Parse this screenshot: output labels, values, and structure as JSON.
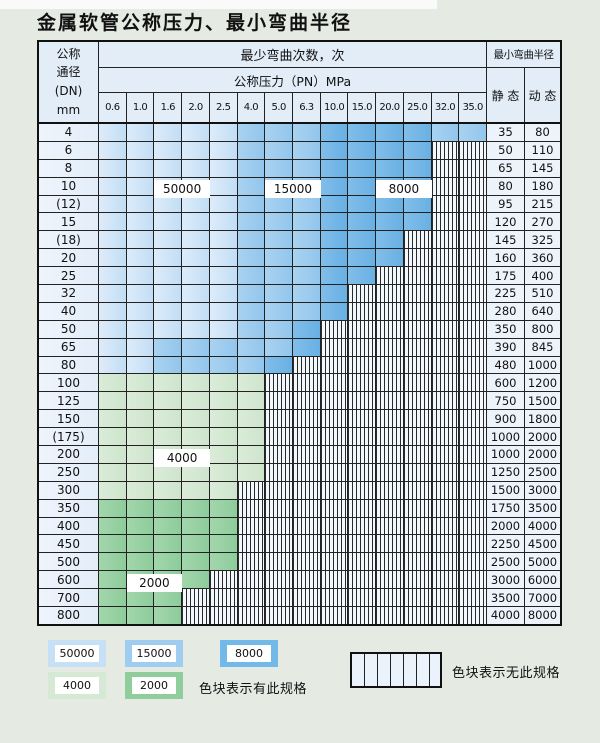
{
  "title": "金属软管公称压力、最小弯曲半径",
  "table": {
    "corner": {
      "l1": "公称",
      "l2": "通径",
      "l3": "(DN)",
      "l4": "mm"
    },
    "bend_header": "最少弯曲次数，次",
    "pressure_header": "公称压力（PN）MPa",
    "radius_header": "最小弯曲半径",
    "static_label": "静 态",
    "dynamic_label": "动 态",
    "pressures": [
      "0.6",
      "1.0",
      "1.6",
      "2.0",
      "2.5",
      "4.0",
      "5.0",
      "6.3",
      "10.0",
      "15.0",
      "20.0",
      "25.0",
      "32.0",
      "35.0"
    ],
    "legend_key": {
      "L": "50000",
      "M": "15000",
      "D": "8000",
      "G": "4000",
      "E": "2000",
      "X": "no-spec"
    },
    "rows": [
      {
        "dn": "4",
        "pattern": "LLLLLMMMDDDDMM",
        "static": "35",
        "dynamic": "80"
      },
      {
        "dn": "6",
        "pattern": "LLLLLMMMDDDDXX",
        "static": "50",
        "dynamic": "110"
      },
      {
        "dn": "8",
        "pattern": "LLLLLMMMDDDDXX",
        "static": "65",
        "dynamic": "145"
      },
      {
        "dn": "10",
        "pattern": "LLLLLMMMDDDDXX",
        "static": "80",
        "dynamic": "180"
      },
      {
        "dn": "(12)",
        "pattern": "LLLLLMMMDDDDXX",
        "static": "95",
        "dynamic": "215"
      },
      {
        "dn": "15",
        "pattern": "LLLLLMMMDDDDXX",
        "static": "120",
        "dynamic": "270"
      },
      {
        "dn": "(18)",
        "pattern": "LLLLLMMMDDDXXX",
        "static": "145",
        "dynamic": "325"
      },
      {
        "dn": "20",
        "pattern": "LLLLLMMMDDDXXX",
        "static": "160",
        "dynamic": "360"
      },
      {
        "dn": "25",
        "pattern": "LLLLLMMMDDXXXX",
        "static": "175",
        "dynamic": "400"
      },
      {
        "dn": "32",
        "pattern": "LLLLLMMMDXXXXX",
        "static": "225",
        "dynamic": "510"
      },
      {
        "dn": "40",
        "pattern": "LLLLLMMMDXXXXX",
        "static": "280",
        "dynamic": "640"
      },
      {
        "dn": "50",
        "pattern": "LLLLLMMDXXXXXX",
        "static": "350",
        "dynamic": "800"
      },
      {
        "dn": "65",
        "pattern": "LLMMMMMDXXXXXX",
        "static": "390",
        "dynamic": "845"
      },
      {
        "dn": "80",
        "pattern": "LLMMMMDXXXXXXX",
        "static": "480",
        "dynamic": "1000"
      },
      {
        "dn": "100",
        "pattern": "GGGGGGXXXXXXXX",
        "static": "600",
        "dynamic": "1200"
      },
      {
        "dn": "125",
        "pattern": "GGGGGGXXXXXXXX",
        "static": "750",
        "dynamic": "1500"
      },
      {
        "dn": "150",
        "pattern": "GGGGGGXXXXXXXX",
        "static": "900",
        "dynamic": "1800"
      },
      {
        "dn": "(175)",
        "pattern": "GGGGGGXXXXXXXX",
        "static": "1000",
        "dynamic": "2000"
      },
      {
        "dn": "200",
        "pattern": "GGGGGGXXXXXXXX",
        "static": "1000",
        "dynamic": "2000"
      },
      {
        "dn": "250",
        "pattern": "GGGGGGXXXXXXXX",
        "static": "1250",
        "dynamic": "2500"
      },
      {
        "dn": "300",
        "pattern": "GGGGGXXXXXXXXX",
        "static": "1500",
        "dynamic": "3000"
      },
      {
        "dn": "350",
        "pattern": "EEEEEXXXXXXXXX",
        "static": "1750",
        "dynamic": "3500"
      },
      {
        "dn": "400",
        "pattern": "EEEEEXXXXXXXXX",
        "static": "2000",
        "dynamic": "4000"
      },
      {
        "dn": "450",
        "pattern": "EEEEEXXXXXXXXX",
        "static": "2250",
        "dynamic": "4500"
      },
      {
        "dn": "500",
        "pattern": "EEEEEXXXXXXXXX",
        "static": "2500",
        "dynamic": "5000"
      },
      {
        "dn": "600",
        "pattern": "EEEEXXXXXXXXXX",
        "static": "3000",
        "dynamic": "6000"
      },
      {
        "dn": "700",
        "pattern": "EEEXXXXXXXXXXX",
        "static": "3500",
        "dynamic": "7000"
      },
      {
        "dn": "800",
        "pattern": "EEEXXXXXXXXXXX",
        "static": "4000",
        "dynamic": "8000"
      }
    ],
    "overlays": [
      {
        "text": "50000",
        "row_dn": "10",
        "cols": [
          2,
          3
        ]
      },
      {
        "text": "15000",
        "row_dn": "10",
        "cols": [
          6,
          7
        ]
      },
      {
        "text": "8000",
        "row_dn": "10",
        "cols": [
          10,
          11
        ]
      },
      {
        "text": "4000",
        "row_dn": "200",
        "cols": [
          2,
          3
        ]
      },
      {
        "text": "2000",
        "row_dn": "600",
        "cols": [
          1,
          2
        ]
      }
    ]
  },
  "legend": {
    "c50000": "50000",
    "c15000": "15000",
    "c8000": "8000",
    "c4000": "4000",
    "c2000": "2000",
    "has_spec_text": "色块表示有此规格",
    "no_spec_text": "色块表示无此规格"
  },
  "colors": {
    "blue_light": "#c6e0f5",
    "blue_mid": "#9ecdef",
    "blue_dark": "#72b8e8",
    "green_light": "#d6e9d4",
    "green_dark": "#8fce9c",
    "stripe_bg": "#f3f8fd",
    "header_bg": "#e2edf8",
    "page_bg": "#e5ebe3"
  }
}
